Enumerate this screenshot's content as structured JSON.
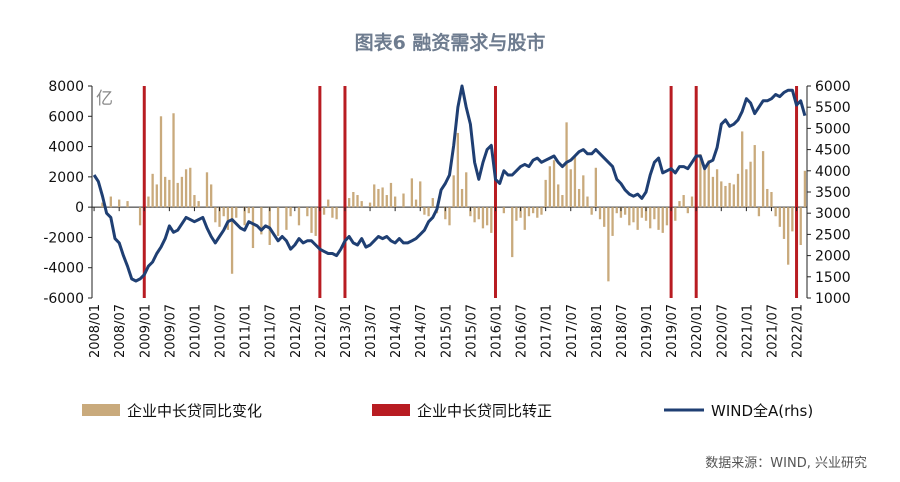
{
  "title": "图表6 融资需求与股市",
  "source": "数据来源：WIND, 兴业研究",
  "chart_data": {
    "type": "bar+line",
    "unit_left": "亿",
    "left_axis": {
      "ylim": [
        -6000,
        8000
      ],
      "ticks": [
        "-6000",
        "-4000",
        "-2000",
        "0",
        "2000",
        "4000",
        "6000",
        "8000"
      ]
    },
    "right_axis": {
      "ylim": [
        1000,
        6000
      ],
      "ticks": [
        "1000",
        "1500",
        "2000",
        "2500",
        "3000",
        "3500",
        "4000",
        "4500",
        "5000",
        "5500",
        "6000"
      ]
    },
    "x_range": [
      "2008-01",
      "2022-03"
    ],
    "x_ticks": [
      "2008/01",
      "2008/07",
      "2009/01",
      "2009/07",
      "2010/01",
      "2010/07",
      "2011/01",
      "2011/07",
      "2012/01",
      "2012/07",
      "2013/01",
      "2013/07",
      "2014/01",
      "2014/07",
      "2015/01",
      "2015/07",
      "2016/01",
      "2016/07",
      "2017/01",
      "2017/07",
      "2018/01",
      "2018/07",
      "2019/01",
      "2019/07",
      "2020/01",
      "2020/07",
      "2021/01",
      "2021/07",
      "2022/01"
    ],
    "legend": [
      "企业中长贷同比变化",
      "企业中长贷同比转正",
      "WIND全A(rhs)"
    ],
    "colors": {
      "bars": "#c9aa7c",
      "vlines": "#b81c22",
      "line": "#1f3f73"
    },
    "vlines_dates": [
      "2009-01",
      "2012-07",
      "2013-01",
      "2016-01",
      "2019-07",
      "2020-01",
      "2022-01"
    ],
    "bars_series": {
      "name": "企业中长贷同比变化",
      "data": [
        [
          "2008-03",
          300
        ],
        [
          "2008-05",
          700
        ],
        [
          "2008-07",
          500
        ],
        [
          "2008-09",
          400
        ],
        [
          "2008-12",
          -1200
        ],
        [
          "2009-02",
          700
        ],
        [
          "2009-03",
          2200
        ],
        [
          "2009-04",
          1500
        ],
        [
          "2009-05",
          6000
        ],
        [
          "2009-06",
          2000
        ],
        [
          "2009-07",
          1800
        ],
        [
          "2009-08",
          6200
        ],
        [
          "2009-09",
          1600
        ],
        [
          "2009-10",
          2000
        ],
        [
          "2009-11",
          2500
        ],
        [
          "2009-12",
          2600
        ],
        [
          "2010-01",
          800
        ],
        [
          "2010-02",
          400
        ],
        [
          "2010-04",
          2300
        ],
        [
          "2010-05",
          1500
        ],
        [
          "2010-06",
          -1000
        ],
        [
          "2010-07",
          -1300
        ],
        [
          "2010-08",
          -600
        ],
        [
          "2010-09",
          -1500
        ],
        [
          "2010-10",
          -4400
        ],
        [
          "2010-11",
          -700
        ],
        [
          "2011-01",
          -1200
        ],
        [
          "2011-02",
          -400
        ],
        [
          "2011-03",
          -2700
        ],
        [
          "2011-05",
          -1800
        ],
        [
          "2011-07",
          -2500
        ],
        [
          "2011-09",
          -1900
        ],
        [
          "2011-11",
          -1500
        ],
        [
          "2011-12",
          -600
        ],
        [
          "2012-02",
          -1200
        ],
        [
          "2012-04",
          -600
        ],
        [
          "2012-05",
          -1700
        ],
        [
          "2012-06",
          -1900
        ],
        [
          "2012-08",
          -500
        ],
        [
          "2012-09",
          500
        ],
        [
          "2012-10",
          -700
        ],
        [
          "2012-11",
          -800
        ],
        [
          "2013-01",
          -800
        ],
        [
          "2013-02",
          600
        ],
        [
          "2013-03",
          1000
        ],
        [
          "2013-04",
          800
        ],
        [
          "2013-05",
          400
        ],
        [
          "2013-07",
          300
        ],
        [
          "2013-08",
          1500
        ],
        [
          "2013-09",
          1200
        ],
        [
          "2013-10",
          1300
        ],
        [
          "2013-11",
          800
        ],
        [
          "2013-12",
          1600
        ],
        [
          "2014-01",
          700
        ],
        [
          "2014-03",
          900
        ],
        [
          "2014-05",
          1900
        ],
        [
          "2014-06",
          500
        ],
        [
          "2014-07",
          1700
        ],
        [
          "2014-08",
          -500
        ],
        [
          "2014-09",
          -600
        ],
        [
          "2014-10",
          600
        ],
        [
          "2014-11",
          -400
        ],
        [
          "2015-01",
          -800
        ],
        [
          "2015-02",
          -1200
        ],
        [
          "2015-03",
          2100
        ],
        [
          "2015-04",
          4900
        ],
        [
          "2015-05",
          1200
        ],
        [
          "2015-06",
          2300
        ],
        [
          "2015-07",
          -600
        ],
        [
          "2015-08",
          -1000
        ],
        [
          "2015-09",
          -800
        ],
        [
          "2015-10",
          -1400
        ],
        [
          "2015-11",
          -1200
        ],
        [
          "2015-12",
          -1700
        ],
        [
          "2016-01",
          -1800
        ],
        [
          "2016-03",
          -400
        ],
        [
          "2016-05",
          -3300
        ],
        [
          "2016-06",
          -900
        ],
        [
          "2016-07",
          -700
        ],
        [
          "2016-08",
          -1500
        ],
        [
          "2016-09",
          -600
        ],
        [
          "2016-10",
          -400
        ],
        [
          "2016-11",
          -700
        ],
        [
          "2016-12",
          -500
        ],
        [
          "2017-01",
          1800
        ],
        [
          "2017-02",
          2700
        ],
        [
          "2017-03",
          3100
        ],
        [
          "2017-04",
          1500
        ],
        [
          "2017-05",
          800
        ],
        [
          "2017-06",
          5600
        ],
        [
          "2017-07",
          2500
        ],
        [
          "2017-08",
          3400
        ],
        [
          "2017-09",
          1200
        ],
        [
          "2017-10",
          2100
        ],
        [
          "2017-11",
          700
        ],
        [
          "2017-12",
          -500
        ],
        [
          "2018-01",
          2600
        ],
        [
          "2018-02",
          -800
        ],
        [
          "2018-03",
          -1300
        ],
        [
          "2018-04",
          -4900
        ],
        [
          "2018-05",
          -1900
        ],
        [
          "2018-06",
          -400
        ],
        [
          "2018-07",
          -700
        ],
        [
          "2018-08",
          -500
        ],
        [
          "2018-09",
          -1200
        ],
        [
          "2018-10",
          -1000
        ],
        [
          "2018-11",
          -1500
        ],
        [
          "2018-12",
          -700
        ],
        [
          "2019-01",
          -900
        ],
        [
          "2019-02",
          -1400
        ],
        [
          "2019-03",
          -800
        ],
        [
          "2019-04",
          -1500
        ],
        [
          "2019-05",
          -1700
        ],
        [
          "2019-06",
          -1200
        ],
        [
          "2019-07",
          600
        ],
        [
          "2019-08",
          -900
        ],
        [
          "2019-09",
          400
        ],
        [
          "2019-10",
          800
        ],
        [
          "2019-11",
          -400
        ],
        [
          "2019-12",
          700
        ],
        [
          "2020-01",
          1600
        ],
        [
          "2020-02",
          3500
        ],
        [
          "2020-03",
          2600
        ],
        [
          "2020-04",
          3100
        ],
        [
          "2020-05",
          2000
        ],
        [
          "2020-06",
          2500
        ],
        [
          "2020-07",
          1700
        ],
        [
          "2020-08",
          1400
        ],
        [
          "2020-09",
          1600
        ],
        [
          "2020-10",
          1500
        ],
        [
          "2020-11",
          2200
        ],
        [
          "2020-12",
          5000
        ],
        [
          "2021-01",
          2500
        ],
        [
          "2021-02",
          3000
        ],
        [
          "2021-03",
          4100
        ],
        [
          "2021-04",
          -600
        ],
        [
          "2021-05",
          3700
        ],
        [
          "2021-06",
          1200
        ],
        [
          "2021-07",
          1000
        ],
        [
          "2021-08",
          -600
        ],
        [
          "2021-09",
          -1300
        ],
        [
          "2021-10",
          -2100
        ],
        [
          "2021-11",
          -3800
        ],
        [
          "2021-12",
          -1600
        ],
        [
          "2022-01",
          -2300
        ],
        [
          "2022-02",
          -2500
        ],
        [
          "2022-03",
          2400
        ]
      ]
    },
    "line_series": {
      "name": "WIND全A(rhs)",
      "data": [
        [
          "2008-01",
          3900
        ],
        [
          "2008-02",
          3750
        ],
        [
          "2008-03",
          3400
        ],
        [
          "2008-04",
          3000
        ],
        [
          "2008-05",
          2900
        ],
        [
          "2008-06",
          2400
        ],
        [
          "2008-07",
          2300
        ],
        [
          "2008-08",
          2000
        ],
        [
          "2008-09",
          1750
        ],
        [
          "2008-10",
          1450
        ],
        [
          "2008-11",
          1400
        ],
        [
          "2008-12",
          1450
        ],
        [
          "2009-01",
          1550
        ],
        [
          "2009-02",
          1750
        ],
        [
          "2009-03",
          1850
        ],
        [
          "2009-04",
          2050
        ],
        [
          "2009-05",
          2200
        ],
        [
          "2009-06",
          2400
        ],
        [
          "2009-07",
          2700
        ],
        [
          "2009-08",
          2550
        ],
        [
          "2009-09",
          2600
        ],
        [
          "2009-10",
          2750
        ],
        [
          "2009-11",
          2900
        ],
        [
          "2009-12",
          2850
        ],
        [
          "2010-01",
          2800
        ],
        [
          "2010-02",
          2850
        ],
        [
          "2010-03",
          2900
        ],
        [
          "2010-04",
          2650
        ],
        [
          "2010-05",
          2450
        ],
        [
          "2010-06",
          2300
        ],
        [
          "2010-07",
          2450
        ],
        [
          "2010-08",
          2600
        ],
        [
          "2010-09",
          2800
        ],
        [
          "2010-10",
          2850
        ],
        [
          "2010-11",
          2750
        ],
        [
          "2010-12",
          2650
        ],
        [
          "2011-01",
          2600
        ],
        [
          "2011-02",
          2800
        ],
        [
          "2011-03",
          2750
        ],
        [
          "2011-04",
          2700
        ],
        [
          "2011-05",
          2600
        ],
        [
          "2011-06",
          2700
        ],
        [
          "2011-07",
          2650
        ],
        [
          "2011-08",
          2500
        ],
        [
          "2011-09",
          2350
        ],
        [
          "2011-10",
          2450
        ],
        [
          "2011-11",
          2350
        ],
        [
          "2011-12",
          2150
        ],
        [
          "2012-01",
          2250
        ],
        [
          "2012-02",
          2400
        ],
        [
          "2012-03",
          2300
        ],
        [
          "2012-04",
          2350
        ],
        [
          "2012-05",
          2350
        ],
        [
          "2012-06",
          2250
        ],
        [
          "2012-07",
          2150
        ],
        [
          "2012-08",
          2100
        ],
        [
          "2012-09",
          2050
        ],
        [
          "2012-10",
          2050
        ],
        [
          "2012-11",
          2000
        ],
        [
          "2012-12",
          2150
        ],
        [
          "2013-01",
          2350
        ],
        [
          "2013-02",
          2450
        ],
        [
          "2013-03",
          2300
        ],
        [
          "2013-04",
          2250
        ],
        [
          "2013-05",
          2400
        ],
        [
          "2013-06",
          2200
        ],
        [
          "2013-07",
          2250
        ],
        [
          "2013-08",
          2350
        ],
        [
          "2013-09",
          2450
        ],
        [
          "2013-10",
          2400
        ],
        [
          "2013-11",
          2450
        ],
        [
          "2013-12",
          2350
        ],
        [
          "2014-01",
          2300
        ],
        [
          "2014-02",
          2400
        ],
        [
          "2014-03",
          2300
        ],
        [
          "2014-04",
          2300
        ],
        [
          "2014-05",
          2350
        ],
        [
          "2014-06",
          2400
        ],
        [
          "2014-07",
          2500
        ],
        [
          "2014-08",
          2600
        ],
        [
          "2014-09",
          2800
        ],
        [
          "2014-10",
          2900
        ],
        [
          "2014-11",
          3100
        ],
        [
          "2014-12",
          3550
        ],
        [
          "2015-01",
          3700
        ],
        [
          "2015-02",
          3900
        ],
        [
          "2015-03",
          4600
        ],
        [
          "2015-04",
          5500
        ],
        [
          "2015-05",
          6000
        ],
        [
          "2015-06",
          5500
        ],
        [
          "2015-07",
          5100
        ],
        [
          "2015-08",
          4200
        ],
        [
          "2015-09",
          3800
        ],
        [
          "2015-10",
          4200
        ],
        [
          "2015-11",
          4500
        ],
        [
          "2015-12",
          4600
        ],
        [
          "2016-01",
          3800
        ],
        [
          "2016-02",
          3700
        ],
        [
          "2016-03",
          4000
        ],
        [
          "2016-04",
          3900
        ],
        [
          "2016-05",
          3900
        ],
        [
          "2016-06",
          4000
        ],
        [
          "2016-07",
          4100
        ],
        [
          "2016-08",
          4150
        ],
        [
          "2016-09",
          4100
        ],
        [
          "2016-10",
          4250
        ],
        [
          "2016-11",
          4300
        ],
        [
          "2016-12",
          4200
        ],
        [
          "2017-01",
          4250
        ],
        [
          "2017-02",
          4300
        ],
        [
          "2017-03",
          4350
        ],
        [
          "2017-04",
          4200
        ],
        [
          "2017-05",
          4100
        ],
        [
          "2017-06",
          4200
        ],
        [
          "2017-07",
          4250
        ],
        [
          "2017-08",
          4350
        ],
        [
          "2017-09",
          4450
        ],
        [
          "2017-10",
          4500
        ],
        [
          "2017-11",
          4400
        ],
        [
          "2017-12",
          4400
        ],
        [
          "2018-01",
          4500
        ],
        [
          "2018-02",
          4400
        ],
        [
          "2018-03",
          4300
        ],
        [
          "2018-04",
          4200
        ],
        [
          "2018-05",
          4100
        ],
        [
          "2018-06",
          3800
        ],
        [
          "2018-07",
          3700
        ],
        [
          "2018-08",
          3550
        ],
        [
          "2018-09",
          3450
        ],
        [
          "2018-10",
          3400
        ],
        [
          "2018-11",
          3450
        ],
        [
          "2018-12",
          3350
        ],
        [
          "2019-01",
          3500
        ],
        [
          "2019-02",
          3900
        ],
        [
          "2019-03",
          4200
        ],
        [
          "2019-04",
          4300
        ],
        [
          "2019-05",
          3950
        ],
        [
          "2019-06",
          4000
        ],
        [
          "2019-07",
          4050
        ],
        [
          "2019-08",
          3950
        ],
        [
          "2019-09",
          4100
        ],
        [
          "2019-10",
          4100
        ],
        [
          "2019-11",
          4050
        ],
        [
          "2019-12",
          4200
        ],
        [
          "2020-01",
          4350
        ],
        [
          "2020-02",
          4350
        ],
        [
          "2020-03",
          4050
        ],
        [
          "2020-04",
          4200
        ],
        [
          "2020-05",
          4250
        ],
        [
          "2020-06",
          4550
        ],
        [
          "2020-07",
          5100
        ],
        [
          "2020-08",
          5200
        ],
        [
          "2020-09",
          5050
        ],
        [
          "2020-10",
          5100
        ],
        [
          "2020-11",
          5200
        ],
        [
          "2020-12",
          5400
        ],
        [
          "2021-01",
          5700
        ],
        [
          "2021-02",
          5600
        ],
        [
          "2021-03",
          5350
        ],
        [
          "2021-04",
          5500
        ],
        [
          "2021-05",
          5650
        ],
        [
          "2021-06",
          5650
        ],
        [
          "2021-07",
          5700
        ],
        [
          "2021-08",
          5800
        ],
        [
          "2021-09",
          5750
        ],
        [
          "2021-10",
          5850
        ],
        [
          "2021-11",
          5900
        ],
        [
          "2021-12",
          5900
        ],
        [
          "2022-01",
          5550
        ],
        [
          "2022-02",
          5650
        ],
        [
          "2022-03",
          5300
        ]
      ]
    }
  }
}
